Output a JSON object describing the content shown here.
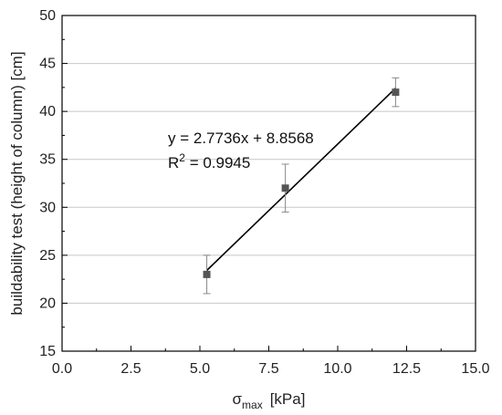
{
  "chart_data": {
    "type": "scatter",
    "xlabel": "σ",
    "xlabel_sub": "max",
    "xlabel_unit": "[kPa]",
    "ylabel": "buildability test (height of column) [cm]",
    "xlim": [
      0,
      15
    ],
    "ylim": [
      15,
      50
    ],
    "xticks": [
      "0.0",
      "2.5",
      "5.0",
      "7.5",
      "10.0",
      "12.5",
      "15.0"
    ],
    "yticks": [
      "15",
      "20",
      "25",
      "30",
      "35",
      "40",
      "45",
      "50"
    ],
    "grid": "horizontal",
    "points": [
      {
        "x": 5.25,
        "y": 23.0,
        "err_low": 21.0,
        "err_high": 25.0
      },
      {
        "x": 8.1,
        "y": 32.0,
        "err_low": 29.5,
        "err_high": 34.5
      },
      {
        "x": 12.1,
        "y": 42.0,
        "err_low": 40.5,
        "err_high": 43.5
      }
    ],
    "fit": {
      "slope": 2.7736,
      "intercept": 8.8568,
      "x_range": [
        5.25,
        12.1
      ]
    },
    "annotation": {
      "equation": "y = 2.7736x + 8.8568",
      "r2_prefix": "R",
      "r2_sup": "2",
      "r2_value": " = 0.9945"
    },
    "colors": {
      "marker": "#555555",
      "line": "#000000",
      "grid": "#c8c8c8",
      "errorbar": "#888888"
    }
  }
}
